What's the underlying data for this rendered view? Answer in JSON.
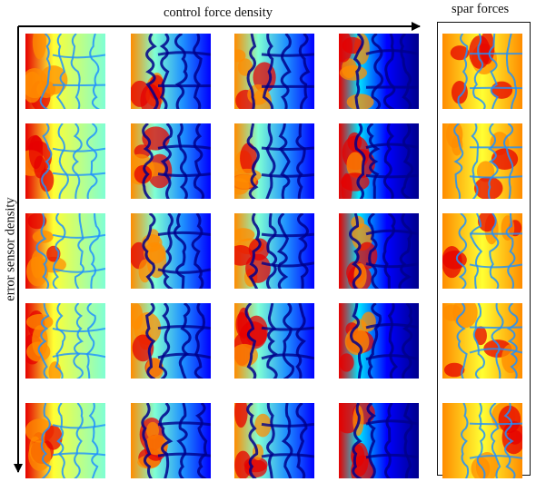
{
  "labels": {
    "x_axis": "control force density",
    "y_axis": "error sensor density",
    "spar": "spar forces"
  },
  "colormap": [
    "#00008b",
    "#0000ff",
    "#1e90ff",
    "#00e5ff",
    "#7fffd4",
    "#ffff33",
    "#ff8c00",
    "#e60000",
    "#a50000"
  ],
  "grid": {
    "rows": 5,
    "control_columns": 4,
    "spar_column": true
  }
}
